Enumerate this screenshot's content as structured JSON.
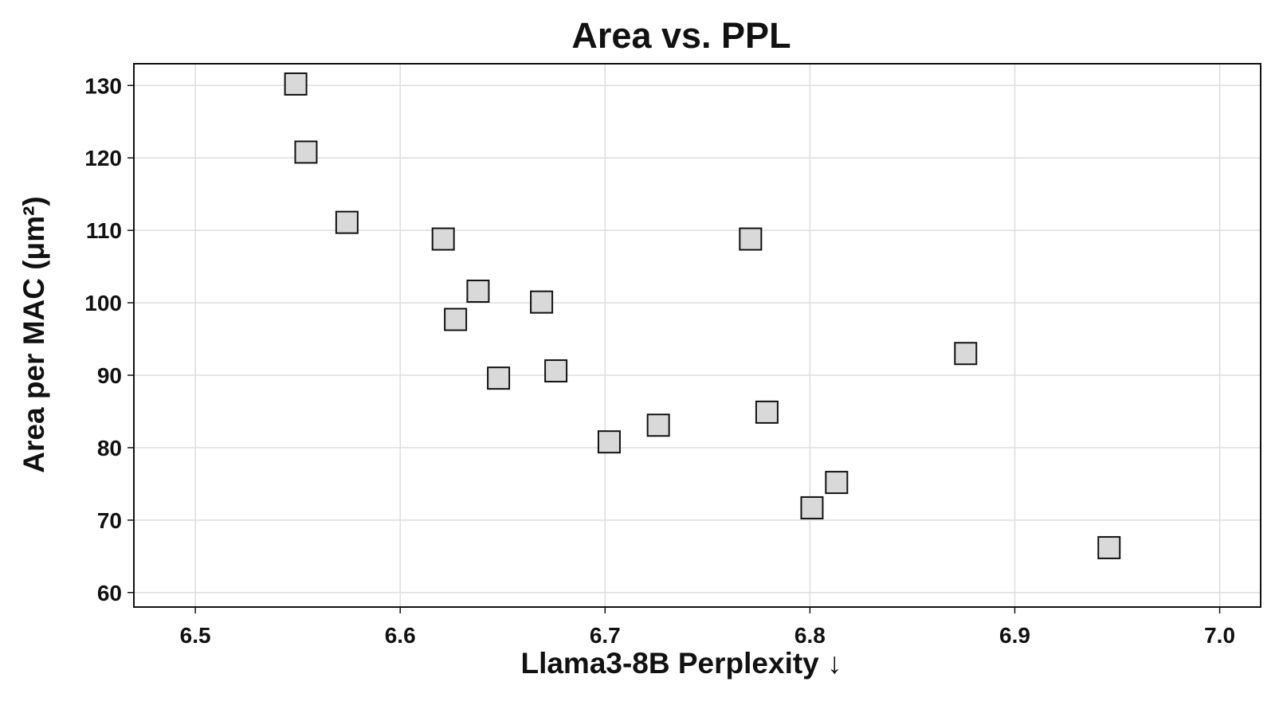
{
  "chart_data": {
    "type": "scatter",
    "title": "Area vs. PPL",
    "xlabel": "Llama3-8B Perplexity ↓",
    "ylabel": "Area per MAC (μm²)",
    "xlim": [
      6.47,
      7.02
    ],
    "ylim": [
      58,
      133
    ],
    "xticks": [
      "6.5",
      "6.6",
      "6.7",
      "6.8",
      "6.9",
      "7.0"
    ],
    "yticks": [
      "60",
      "70",
      "80",
      "90",
      "100",
      "110",
      "120",
      "130"
    ],
    "grid": true,
    "legend": "none",
    "marker": "square",
    "marker_color": "#d9d9d9",
    "series": [
      {
        "x": [
          6.549,
          6.554,
          6.574,
          6.621,
          6.627,
          6.638,
          6.648,
          6.669,
          6.676,
          6.702,
          6.726,
          6.771,
          6.779,
          6.801,
          6.813,
          6.876,
          6.946
        ],
        "y": [
          130.2,
          120.8,
          111.1,
          108.8,
          97.7,
          101.6,
          89.6,
          100.1,
          90.6,
          80.8,
          83.1,
          108.8,
          84.9,
          71.7,
          75.2,
          93.0,
          66.2
        ]
      }
    ]
  }
}
